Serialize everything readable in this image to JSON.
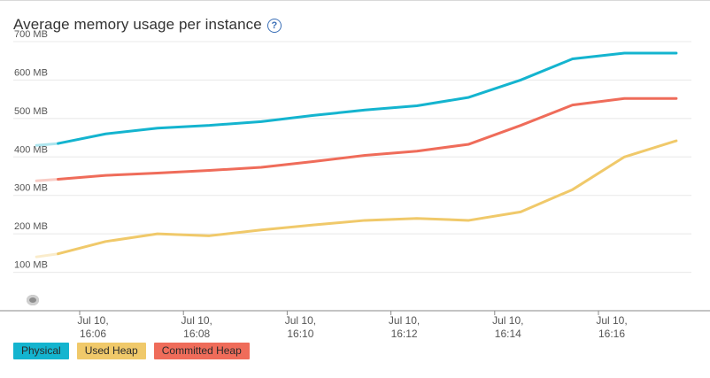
{
  "chart_data": {
    "type": "line",
    "title": "Average memory usage per instance",
    "ylim": [
      0,
      700
    ],
    "y_ticks": [
      {
        "value": 100,
        "label": "100 MB"
      },
      {
        "value": 200,
        "label": "200 MB"
      },
      {
        "value": 300,
        "label": "300 MB"
      },
      {
        "value": 400,
        "label": "400 MB"
      },
      {
        "value": 500,
        "label": "500 MB"
      },
      {
        "value": 600,
        "label": "600 MB"
      },
      {
        "value": 700,
        "label": "700 MB"
      }
    ],
    "x_ticks": [
      {
        "line1": "Jul 10,",
        "line2": "16:06",
        "minute": 6
      },
      {
        "line1": "Jul 10,",
        "line2": "16:08",
        "minute": 8
      },
      {
        "line1": "Jul 10,",
        "line2": "16:10",
        "minute": 10
      },
      {
        "line1": "Jul 10,",
        "line2": "16:12",
        "minute": 12
      },
      {
        "line1": "Jul 10,",
        "line2": "16:14",
        "minute": 14
      },
      {
        "line1": "Jul 10,",
        "line2": "16:16",
        "minute": 16
      }
    ],
    "x": [
      "16:05:10",
      "16:05:35",
      "16:06:30",
      "16:07:30",
      "16:08:30",
      "16:09:30",
      "16:10:30",
      "16:11:30",
      "16:12:30",
      "16:13:30",
      "16:14:30",
      "16:15:30",
      "16:16:30",
      "16:17:30"
    ],
    "series": [
      {
        "name": "Physical",
        "color": "#14b4cf",
        "values": [
          430,
          435,
          460,
          475,
          482,
          492,
          508,
          522,
          533,
          555,
          600,
          655,
          670,
          670
        ]
      },
      {
        "name": "Used Heap",
        "color": "#f0c96a",
        "values": [
          140,
          148,
          180,
          200,
          195,
          210,
          223,
          235,
          240,
          235,
          257,
          315,
          400,
          442
        ]
      },
      {
        "name": "Committed Heap",
        "color": "#ef6c5a",
        "values": [
          338,
          342,
          352,
          358,
          365,
          373,
          388,
          404,
          415,
          433,
          482,
          535,
          552,
          552
        ]
      }
    ],
    "grid": true,
    "legend_position": "bottom-left"
  }
}
